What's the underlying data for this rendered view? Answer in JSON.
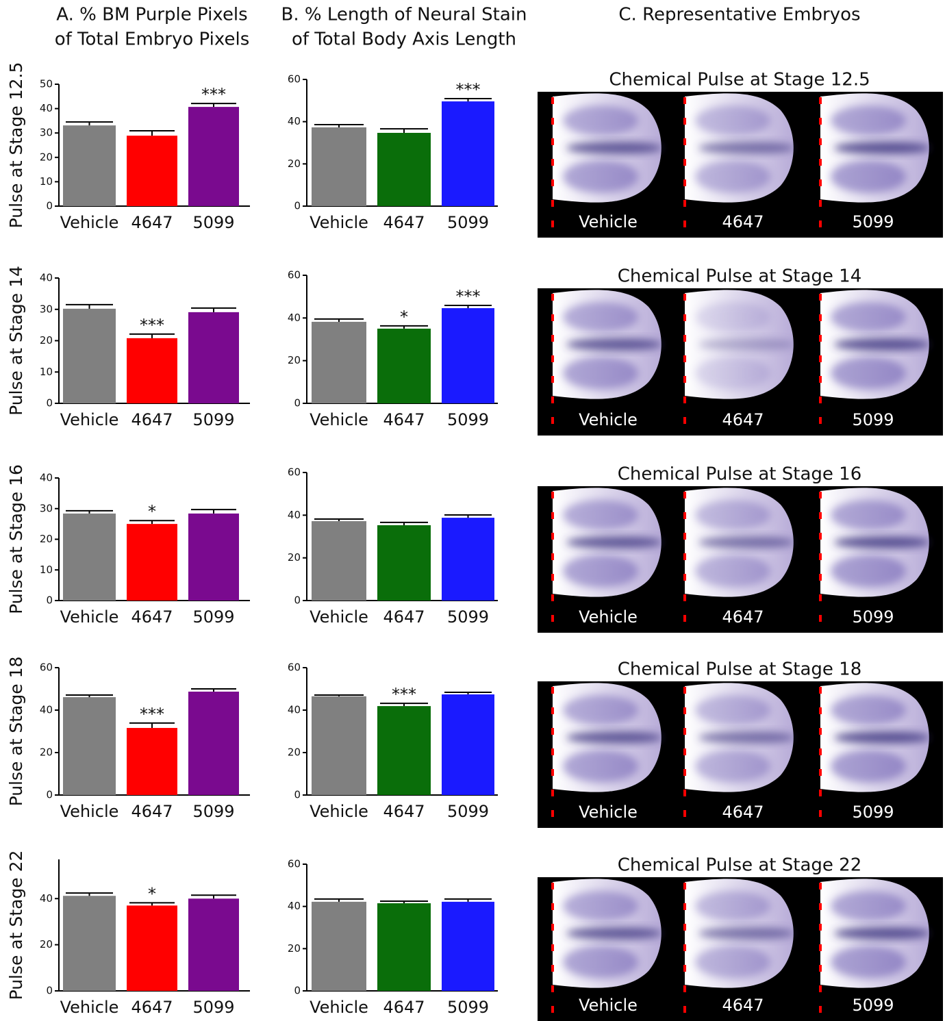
{
  "headers": [
    [
      "A. % BM Purple Pixels",
      "of Total Embryo Pixels"
    ],
    [
      "B. % Length of Neural Stain",
      "of Total Body Axis Length"
    ],
    [
      "C. Representative Embryos"
    ]
  ],
  "chart_data": [
    {
      "type": "bar",
      "ylabel": "Pulse at Stage 12.5",
      "categories": [
        "Vehicle",
        "4647",
        "5099"
      ],
      "values": [
        33.1,
        28.9,
        40.7
      ],
      "errors": [
        1.4,
        2.0,
        1.4
      ],
      "colors": [
        "#808080",
        "#ff0000",
        "#7a0a8f"
      ],
      "annotations": [
        null,
        null,
        "***"
      ],
      "ylim": [
        0,
        50
      ],
      "yticks": [
        0,
        10,
        20,
        30,
        40,
        50
      ]
    },
    {
      "type": "bar",
      "categories": [
        "Vehicle",
        "4647",
        "5099"
      ],
      "values": [
        37.3,
        34.7,
        49.6
      ],
      "errors": [
        1.3,
        1.9,
        1.3
      ],
      "colors": [
        "#808080",
        "#0a6e0a",
        "#1a1aff"
      ],
      "annotations": [
        null,
        null,
        "***"
      ],
      "ylim": [
        0,
        60
      ],
      "yticks": [
        0,
        20,
        40,
        60
      ]
    },
    {
      "type": "bar",
      "ylabel": "Pulse at Stage 14",
      "categories": [
        "Vehicle",
        "4647",
        "5099"
      ],
      "values": [
        30.2,
        20.8,
        29.1
      ],
      "errors": [
        1.3,
        1.3,
        1.3
      ],
      "colors": [
        "#808080",
        "#ff0000",
        "#7a0a8f"
      ],
      "annotations": [
        null,
        "***",
        null
      ],
      "ylim": [
        0,
        40
      ],
      "yticks": [
        0,
        10,
        20,
        30,
        40
      ]
    },
    {
      "type": "bar",
      "categories": [
        "Vehicle",
        "4647",
        "5099"
      ],
      "values": [
        38.2,
        35.0,
        44.6
      ],
      "errors": [
        1.3,
        1.3,
        1.3
      ],
      "colors": [
        "#808080",
        "#0a6e0a",
        "#1a1aff"
      ],
      "annotations": [
        null,
        "*",
        "***"
      ],
      "ylim": [
        0,
        60
      ],
      "yticks": [
        0,
        20,
        40,
        60
      ]
    },
    {
      "type": "bar",
      "ylabel": "Pulse at Stage 16",
      "categories": [
        "Vehicle",
        "4647",
        "5099"
      ],
      "values": [
        28.4,
        25.0,
        28.4
      ],
      "errors": [
        0.9,
        1.1,
        1.3
      ],
      "colors": [
        "#808080",
        "#ff0000",
        "#7a0a8f"
      ],
      "annotations": [
        null,
        "*",
        null
      ],
      "ylim": [
        0,
        40
      ],
      "yticks": [
        0,
        10,
        20,
        30,
        40
      ]
    },
    {
      "type": "bar",
      "categories": [
        "Vehicle",
        "4647",
        "5099"
      ],
      "values": [
        37.2,
        35.3,
        38.8
      ],
      "errors": [
        1.0,
        1.3,
        1.3
      ],
      "colors": [
        "#808080",
        "#0a6e0a",
        "#1a1aff"
      ],
      "annotations": [
        null,
        null,
        null
      ],
      "ylim": [
        0,
        60
      ],
      "yticks": [
        0,
        20,
        40,
        60
      ]
    },
    {
      "type": "bar",
      "ylabel": "Pulse at Stage 18",
      "categories": [
        "Vehicle",
        "4647",
        "5099"
      ],
      "values": [
        46.1,
        31.6,
        48.7
      ],
      "errors": [
        1.0,
        2.3,
        1.3
      ],
      "colors": [
        "#808080",
        "#ff0000",
        "#7a0a8f"
      ],
      "annotations": [
        null,
        "***",
        null
      ],
      "ylim": [
        0,
        60
      ],
      "yticks": [
        0,
        20,
        40,
        60
      ]
    },
    {
      "type": "bar",
      "categories": [
        "Vehicle",
        "4647",
        "5099"
      ],
      "values": [
        46.5,
        41.9,
        47.4
      ],
      "errors": [
        0.6,
        1.3,
        1.0
      ],
      "colors": [
        "#808080",
        "#0a6e0a",
        "#1a1aff"
      ],
      "annotations": [
        null,
        "***",
        null
      ],
      "ylim": [
        0,
        60
      ],
      "yticks": [
        0,
        20,
        40,
        60
      ]
    },
    {
      "type": "bar",
      "ylabel": "Pulse at Stage 22",
      "categories": [
        "Vehicle",
        "4647",
        "5099"
      ],
      "values": [
        41.2,
        37.0,
        40.0
      ],
      "errors": [
        1.2,
        1.2,
        1.5
      ],
      "colors": [
        "#808080",
        "#ff0000",
        "#7a0a8f"
      ],
      "annotations": [
        null,
        "*",
        null
      ],
      "ylim": [
        0,
        57
      ],
      "yticks": [
        0,
        20,
        40
      ]
    },
    {
      "type": "bar",
      "categories": [
        "Vehicle",
        "4647",
        "5099"
      ],
      "values": [
        42.2,
        41.5,
        42.2
      ],
      "errors": [
        1.3,
        1.0,
        1.3
      ],
      "colors": [
        "#808080",
        "#0a6e0a",
        "#1a1aff"
      ],
      "annotations": [
        null,
        null,
        null
      ],
      "ylim": [
        0,
        60
      ],
      "yticks": [
        0,
        20,
        40,
        60
      ]
    }
  ],
  "embryo_panels": [
    {
      "title": "Chemical Pulse at Stage 12.5",
      "labels": [
        "Vehicle",
        "4647",
        "5099"
      ]
    },
    {
      "title": "Chemical Pulse at Stage 14",
      "labels": [
        "Vehicle",
        "4647",
        "5099"
      ]
    },
    {
      "title": "Chemical Pulse at Stage 16",
      "labels": [
        "Vehicle",
        "4647",
        "5099"
      ]
    },
    {
      "title": "Chemical Pulse at Stage 18",
      "labels": [
        "Vehicle",
        "4647",
        "5099"
      ]
    },
    {
      "title": "Chemical Pulse at Stage 22",
      "labels": [
        "Vehicle",
        "4647",
        "5099"
      ]
    }
  ]
}
